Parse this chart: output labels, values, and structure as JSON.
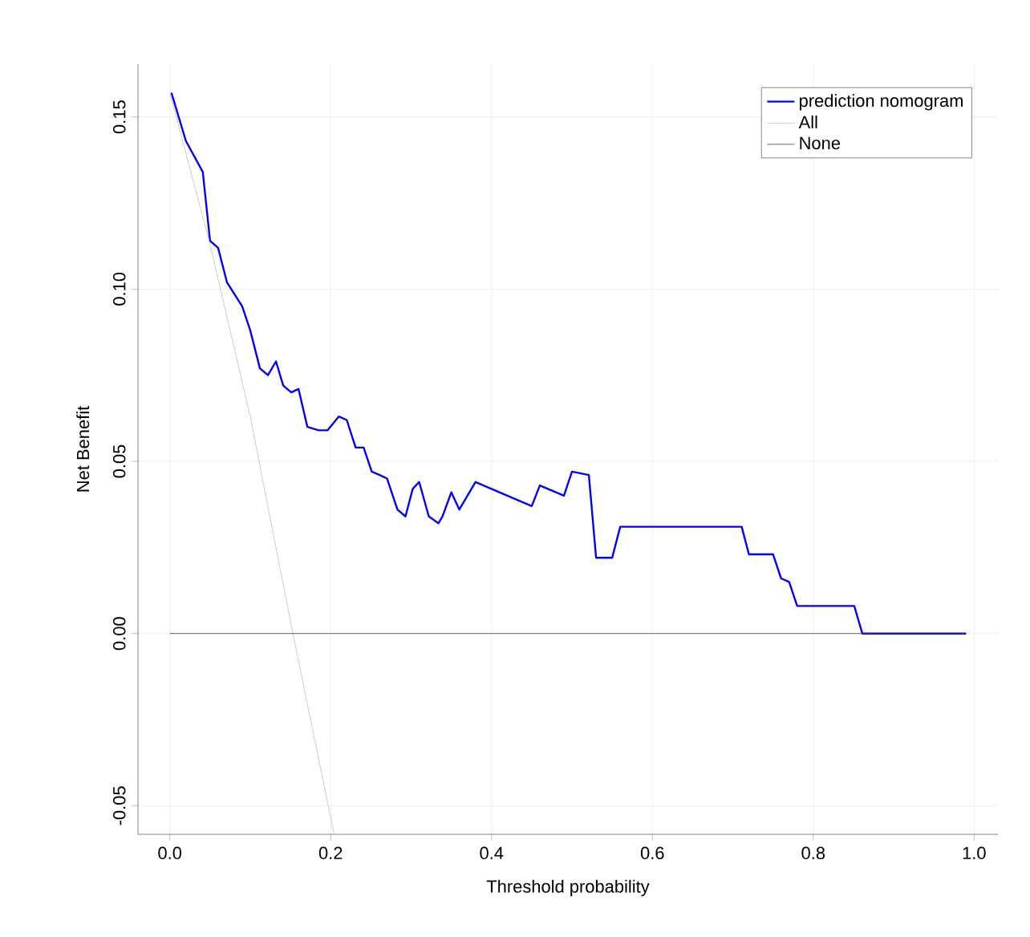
{
  "chart_data": {
    "type": "line",
    "xlabel": "Threshold probability",
    "ylabel": "Net Benefit",
    "xlim": [
      -0.0396,
      1.0296
    ],
    "ylim": [
      -0.0583,
      0.1653
    ],
    "xticks": [
      {
        "value": 0,
        "label": "0.0"
      },
      0.2,
      0.4,
      0.6,
      0.8,
      {
        "value": 1,
        "label": "1.0"
      }
    ],
    "yticks": [
      -0.05,
      {
        "value": 0,
        "label": "0.00"
      },
      0.05,
      {
        "value": 0.1,
        "label": "0.10"
      },
      0.15
    ],
    "grid": true,
    "legend": "top right",
    "series": [
      {
        "name": "prediction nomogram",
        "color": "#0000ff",
        "x": [
          0.002,
          0.02,
          0.041,
          0.05,
          0.06,
          0.071,
          0.09,
          0.1,
          0.112,
          0.122,
          0.132,
          0.141,
          0.151,
          0.16,
          0.171,
          0.185,
          0.196,
          0.21,
          0.22,
          0.231,
          0.241,
          0.251,
          0.261,
          0.27,
          0.283,
          0.293,
          0.302,
          0.31,
          0.322,
          0.334,
          0.339,
          0.35,
          0.36,
          0.38,
          0.45,
          0.46,
          0.49,
          0.5,
          0.521,
          0.53,
          0.55,
          0.56,
          0.711,
          0.72,
          0.75,
          0.76,
          0.77,
          0.78,
          0.851,
          0.861,
          0.99
        ],
        "values": [
          0.157,
          0.143,
          0.134,
          0.114,
          0.112,
          0.102,
          0.095,
          0.088,
          0.077,
          0.075,
          0.079,
          0.072,
          0.07,
          0.071,
          0.06,
          0.059,
          0.059,
          0.063,
          0.062,
          0.054,
          0.054,
          0.047,
          0.046,
          0.045,
          0.036,
          0.034,
          0.042,
          0.044,
          0.034,
          0.032,
          0.034,
          0.041,
          0.036,
          0.044,
          0.037,
          0.043,
          0.04,
          0.047,
          0.046,
          0.022,
          0.022,
          0.031,
          0.031,
          0.023,
          0.023,
          0.016,
          0.015,
          0.008,
          0.008,
          0.0,
          0.0
        ]
      },
      {
        "name": "All",
        "color": "#bebebe",
        "x": [
          0.0,
          0.05,
          0.1,
          0.153,
          0.204
        ],
        "values": [
          0.157,
          0.113,
          0.063,
          0.0,
          -0.058
        ]
      },
      {
        "name": "None",
        "color": "#404040",
        "x": [
          0.0,
          0.99
        ],
        "values": [
          0.0,
          0.0
        ]
      }
    ]
  }
}
